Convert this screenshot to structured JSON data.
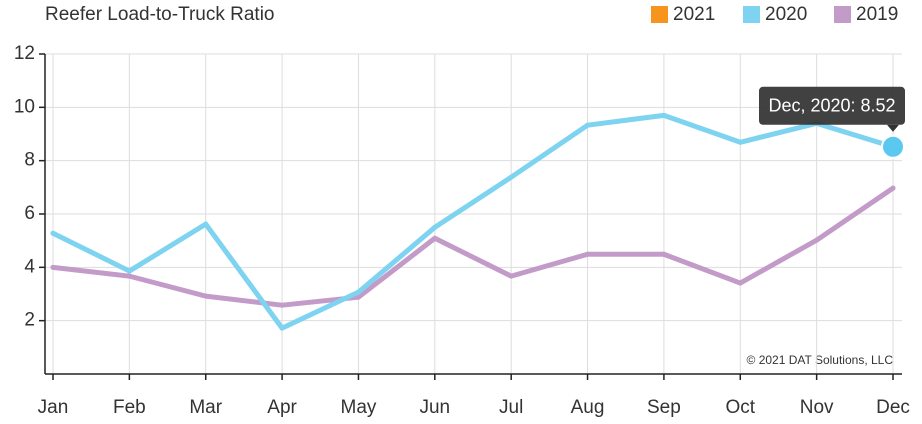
{
  "chart_data": {
    "type": "line",
    "title": "Reefer Load-to-Truck Ratio",
    "categories": [
      "Jan",
      "Feb",
      "Mar",
      "Apr",
      "May",
      "Jun",
      "Jul",
      "Aug",
      "Sep",
      "Oct",
      "Nov",
      "Dec"
    ],
    "series": [
      {
        "name": "2021",
        "color": "#f7941d",
        "values": [
          null,
          null,
          null,
          null,
          null,
          null,
          null,
          null,
          null,
          null,
          null,
          null
        ]
      },
      {
        "name": "2020",
        "color": "#7dd3f0",
        "values": [
          5.28,
          3.86,
          5.62,
          1.72,
          3.07,
          5.5,
          7.38,
          9.33,
          9.7,
          8.69,
          9.4,
          8.52
        ]
      },
      {
        "name": "2019",
        "color": "#c39bc8",
        "values": [
          4.0,
          3.67,
          2.92,
          2.58,
          2.88,
          5.09,
          3.67,
          4.49,
          4.49,
          3.41,
          5.02,
          6.97
        ]
      }
    ],
    "ylim": [
      0,
      12
    ],
    "yticks": [
      2,
      4,
      6,
      8,
      10,
      12
    ],
    "grid": true,
    "legend": "top-right",
    "tooltip": {
      "text": "Dec, 2020: 8.52",
      "series": 1,
      "index": 11
    },
    "annotations": [
      "© 2021 DAT Solutions, LLC"
    ]
  }
}
